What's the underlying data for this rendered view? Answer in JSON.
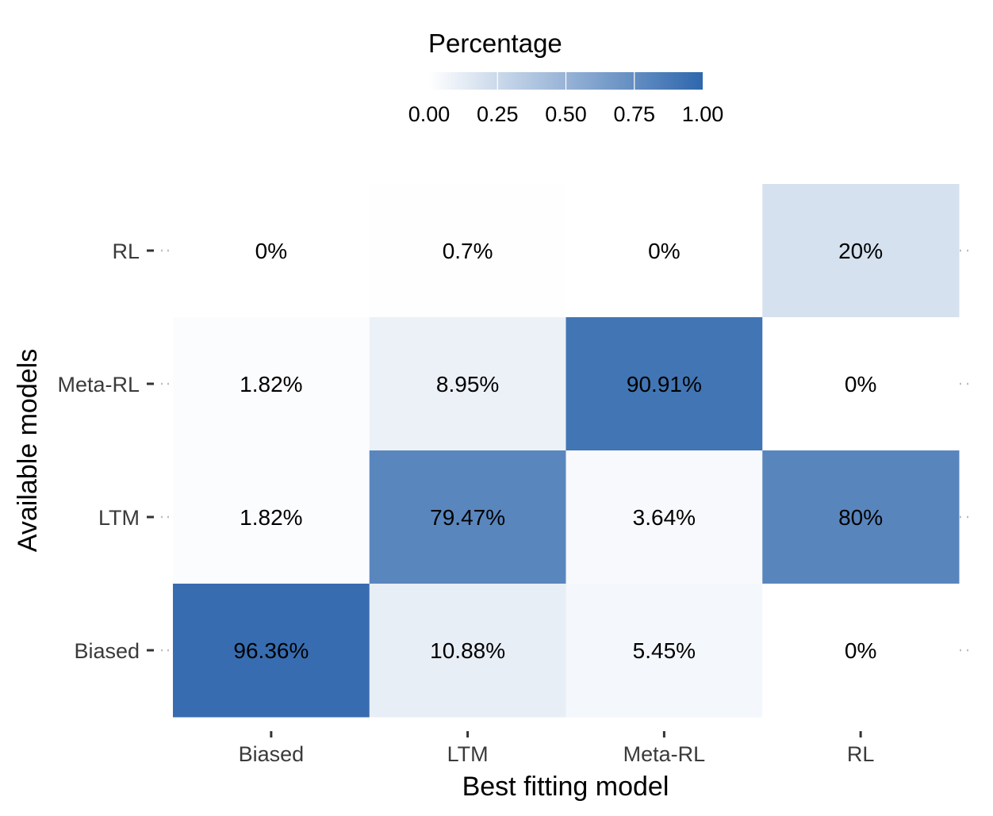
{
  "chart_data": {
    "type": "heatmap",
    "x_categories": [
      "Biased",
      "LTM",
      "Meta-RL",
      "RL"
    ],
    "y_categories": [
      "Biased",
      "LTM",
      "Meta-RL",
      "RL"
    ],
    "xlabel": "Best fitting model",
    "ylabel": "Available models",
    "legend": {
      "title": "Percentage",
      "position": "top",
      "ticks": [
        "0.00",
        "0.25",
        "0.50",
        "0.75",
        "1.00"
      ],
      "low_color": "#ffffff",
      "high_color": "#2f67ad"
    },
    "cells": [
      {
        "x": "Biased",
        "y": "RL",
        "value": 0.0,
        "label": "0%"
      },
      {
        "x": "LTM",
        "y": "RL",
        "value": 0.007,
        "label": "0.7%"
      },
      {
        "x": "Meta-RL",
        "y": "RL",
        "value": 0.0,
        "label": "0%"
      },
      {
        "x": "RL",
        "y": "RL",
        "value": 0.2,
        "label": "20%"
      },
      {
        "x": "Biased",
        "y": "Meta-RL",
        "value": 0.0182,
        "label": "1.82%"
      },
      {
        "x": "LTM",
        "y": "Meta-RL",
        "value": 0.0895,
        "label": "8.95%"
      },
      {
        "x": "Meta-RL",
        "y": "Meta-RL",
        "value": 0.9091,
        "label": "90.91%"
      },
      {
        "x": "RL",
        "y": "Meta-RL",
        "value": 0.0,
        "label": "0%"
      },
      {
        "x": "Biased",
        "y": "LTM",
        "value": 0.0182,
        "label": "1.82%"
      },
      {
        "x": "LTM",
        "y": "LTM",
        "value": 0.7947,
        "label": "79.47%"
      },
      {
        "x": "Meta-RL",
        "y": "LTM",
        "value": 0.0364,
        "label": "3.64%"
      },
      {
        "x": "RL",
        "y": "LTM",
        "value": 0.8,
        "label": "80%"
      },
      {
        "x": "Biased",
        "y": "Biased",
        "value": 0.9636,
        "label": "96.36%"
      },
      {
        "x": "LTM",
        "y": "Biased",
        "value": 0.1088,
        "label": "10.88%"
      },
      {
        "x": "Meta-RL",
        "y": "Biased",
        "value": 0.0545,
        "label": "5.45%"
      },
      {
        "x": "RL",
        "y": "Biased",
        "value": 0.0,
        "label": "0%"
      }
    ]
  }
}
